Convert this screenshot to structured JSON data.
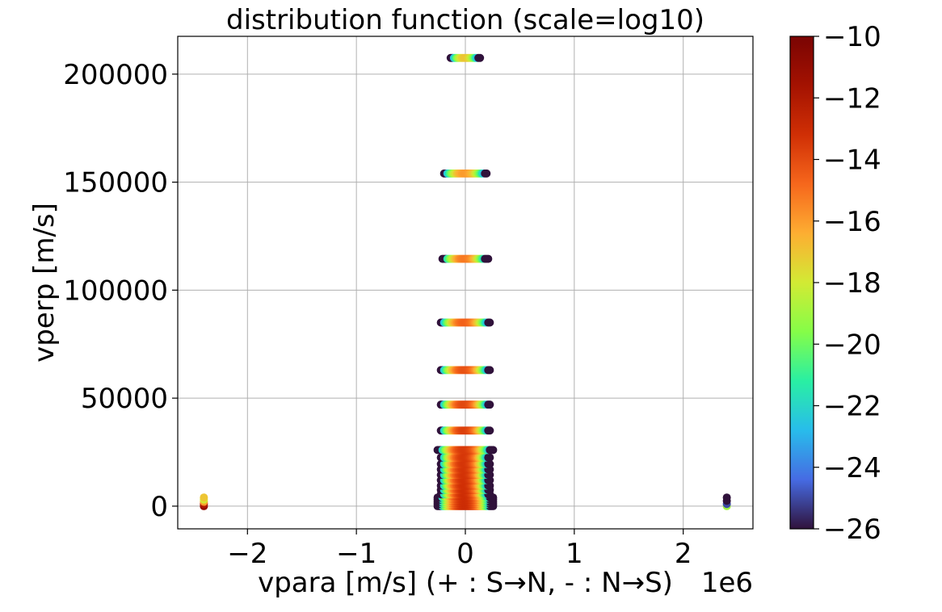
{
  "chart_data": {
    "type": "scatter",
    "title": "distribution function (scale=log10)",
    "xlabel": "vpara [m/s] (+ : S→N, - : N→S)",
    "x_offset_label": "1e6",
    "ylabel": "vperp [m/s]",
    "x_scale_factor": 1000000,
    "xlim": [
      -2640000,
      2640000
    ],
    "ylim": [
      -10500,
      217500
    ],
    "x_ticks": [
      -2000000,
      -1000000,
      0,
      1000000,
      2000000
    ],
    "x_tick_labels": [
      "−2",
      "−1",
      "0",
      "1",
      "2"
    ],
    "y_ticks": [
      0,
      50000,
      100000,
      150000,
      200000
    ],
    "y_tick_labels": [
      "0",
      "50000",
      "100000",
      "150000",
      "200000"
    ],
    "grid": true,
    "colorbar": {
      "label": "",
      "range": [
        -26,
        -10
      ],
      "ticks": [
        -10,
        -12,
        -14,
        -16,
        -18,
        -20,
        -22,
        -24,
        -26
      ],
      "tick_labels": [
        "−10",
        "−12",
        "−14",
        "−16",
        "−18",
        "−20",
        "−22",
        "−24",
        "−26"
      ],
      "colormap": "turbo"
    },
    "rows": [
      {
        "vperp": 0,
        "vpara_max": 250000
      },
      {
        "vperp": 1000,
        "vpara_max": 250000
      },
      {
        "vperp": 2000,
        "vpara_max": 250000
      },
      {
        "vperp": 3000,
        "vpara_max": 250000
      },
      {
        "vperp": 4000,
        "vpara_max": 250000
      },
      {
        "vperp": 5500,
        "vpara_max": 230000
      },
      {
        "vperp": 7500,
        "vpara_max": 230000
      },
      {
        "vperp": 9500,
        "vpara_max": 230000
      },
      {
        "vperp": 12000,
        "vpara_max": 230000
      },
      {
        "vperp": 14500,
        "vpara_max": 230000
      },
      {
        "vperp": 17000,
        "vpara_max": 230000
      },
      {
        "vperp": 19500,
        "vpara_max": 230000
      },
      {
        "vperp": 22500,
        "vpara_max": 230000
      },
      {
        "vperp": 26000,
        "vpara_max": 250000
      },
      {
        "vperp": 35000,
        "vpara_max": 230000
      },
      {
        "vperp": 47000,
        "vpara_max": 230000
      },
      {
        "vperp": 63000,
        "vpara_max": 230000
      },
      {
        "vperp": 85000,
        "vpara_max": 230000
      },
      {
        "vperp": 114500,
        "vpara_max": 210000
      },
      {
        "vperp": 154000,
        "vpara_max": 200000
      },
      {
        "vperp": 207500,
        "vpara_max": 130000
      }
    ],
    "edge_clusters": [
      {
        "vpara": -2400000,
        "vperp": 0,
        "log10f": -11
      },
      {
        "vpara": -2400000,
        "vperp": 1000,
        "log10f": -12
      },
      {
        "vpara": -2400000,
        "vperp": 2000,
        "log10f": -16
      },
      {
        "vpara": -2400000,
        "vperp": 3000,
        "log10f": -18
      },
      {
        "vpara": -2400000,
        "vperp": 4000,
        "log10f": -17
      },
      {
        "vpara": 2400000,
        "vperp": 0,
        "log10f": -19
      },
      {
        "vpara": 2400000,
        "vperp": 1000,
        "log10f": -25
      },
      {
        "vpara": 2400000,
        "vperp": 2500,
        "log10f": -26
      },
      {
        "vpara": 2400000,
        "vperp": 4000,
        "log10f": -26
      }
    ]
  }
}
